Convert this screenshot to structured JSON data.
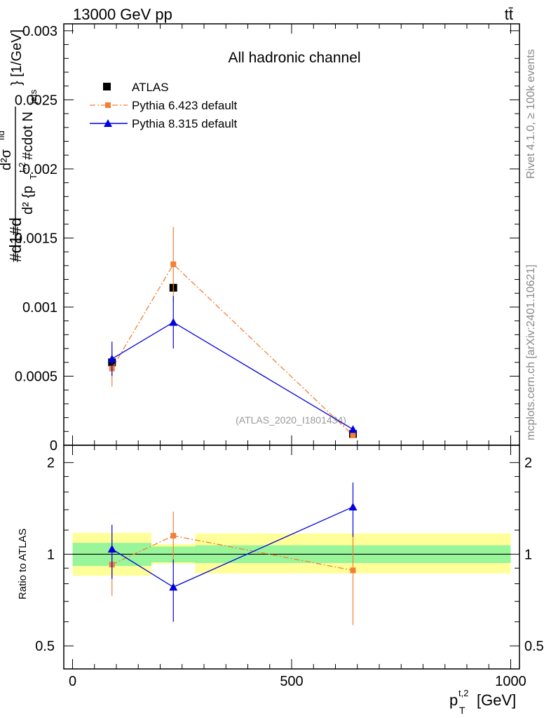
{
  "header": {
    "left": "13000 GeV pp",
    "right": "tt̄"
  },
  "side_labels": {
    "rivet": "Rivet 4.1.0, ≥ 100k events",
    "mcplots": "mcplots.cern.ch [arXiv:2401.10621]"
  },
  "chart_data": {
    "type": "line",
    "title": "All hadronic channel",
    "analysis_label": "(ATLAS_2020_I1801434)",
    "xlabel": "p_T^{t,2} [GeV]",
    "xlabel_main": "p",
    "xlabel_sub": "T",
    "xlabel_sup": "t,2",
    "xlabel_unit": "[GeV]",
    "ylabel": "#d1#d d²σ^{fid} / d² {p_T^{t,2} #cdot N_{jets}} [1/GeV]",
    "ylabel_fragments": [
      "#d1#d",
      "d²σ",
      "fid",
      "d² {p",
      "T",
      "t,2",
      "#cdot N",
      "jets",
      "} [1/GeV]"
    ],
    "ratio_ylabel": "Ratio to ATLAS",
    "xlim": [
      -20,
      1020
    ],
    "ylim": [
      0,
      0.00305
    ],
    "ratio_ylim": [
      0.42,
      2.28
    ],
    "x_ticks": [
      {
        "value": 0,
        "label": "0"
      },
      {
        "value": 500,
        "label": "500"
      },
      {
        "value": 1000,
        "label": "1000"
      }
    ],
    "y_ticks": [
      {
        "value": 0,
        "label": "0"
      },
      {
        "value": 0.0005,
        "label": "0.0005"
      },
      {
        "value": 0.001,
        "label": "0.001"
      },
      {
        "value": 0.0015,
        "label": "0.0015"
      },
      {
        "value": 0.002,
        "label": "0.002"
      },
      {
        "value": 0.0025,
        "label": "0.0025"
      },
      {
        "value": 0.003,
        "label": "0.003"
      }
    ],
    "ratio_ticks": [
      {
        "value": 0.5,
        "label": "0.5"
      },
      {
        "value": 1,
        "label": "1"
      },
      {
        "value": 2,
        "label": "2"
      }
    ],
    "bin_edges": [
      0,
      180,
      280,
      1000
    ],
    "x": [
      90,
      230,
      640
    ],
    "series": [
      {
        "name": "ATLAS",
        "color": "#000000",
        "marker": "square",
        "line": "none",
        "values": [
          0.0006,
          0.00114,
          8.13e-05
        ],
        "err": [
          2e-05,
          3e-05,
          5e-06
        ]
      },
      {
        "name": "Pythia 6.423 default",
        "color": "#f47f36",
        "marker": "square-small",
        "line": "dashdot",
        "values": [
          0.000555,
          0.00131,
          7.2e-05
        ],
        "err": [
          0.00013,
          0.00027,
          2e-05
        ]
      },
      {
        "name": "Pythia 8.315 default",
        "color": "#0000dd",
        "marker": "triangle",
        "line": "solid",
        "values": [
          0.000625,
          0.00089,
          0.000115
        ],
        "err": [
          0.000125,
          0.00019,
          2e-05
        ]
      }
    ],
    "ratio": {
      "reference": 1,
      "bands": [
        {
          "x0": 0,
          "x1": 180,
          "inner": [
            0.915,
            1.09
          ],
          "outer": [
            0.85,
            1.175
          ]
        },
        {
          "x0": 180,
          "x1": 280,
          "inner": [
            0.94,
            1.06
          ],
          "outer": [
            0.93,
            1.08
          ]
        },
        {
          "x0": 280,
          "x1": 1000,
          "inner": [
            0.935,
            1.07
          ],
          "outer": [
            0.865,
            1.17
          ]
        }
      ],
      "series": [
        {
          "name": "Pythia 6.423 default",
          "values": [
            0.925,
            1.15,
            0.885
          ],
          "err": [
            0.195,
            0.23,
            0.3
          ]
        },
        {
          "name": "Pythia 8.315 default",
          "values": [
            1.04,
            0.78,
            1.43
          ],
          "err": [
            0.21,
            0.18,
            0.29
          ]
        }
      ]
    }
  }
}
